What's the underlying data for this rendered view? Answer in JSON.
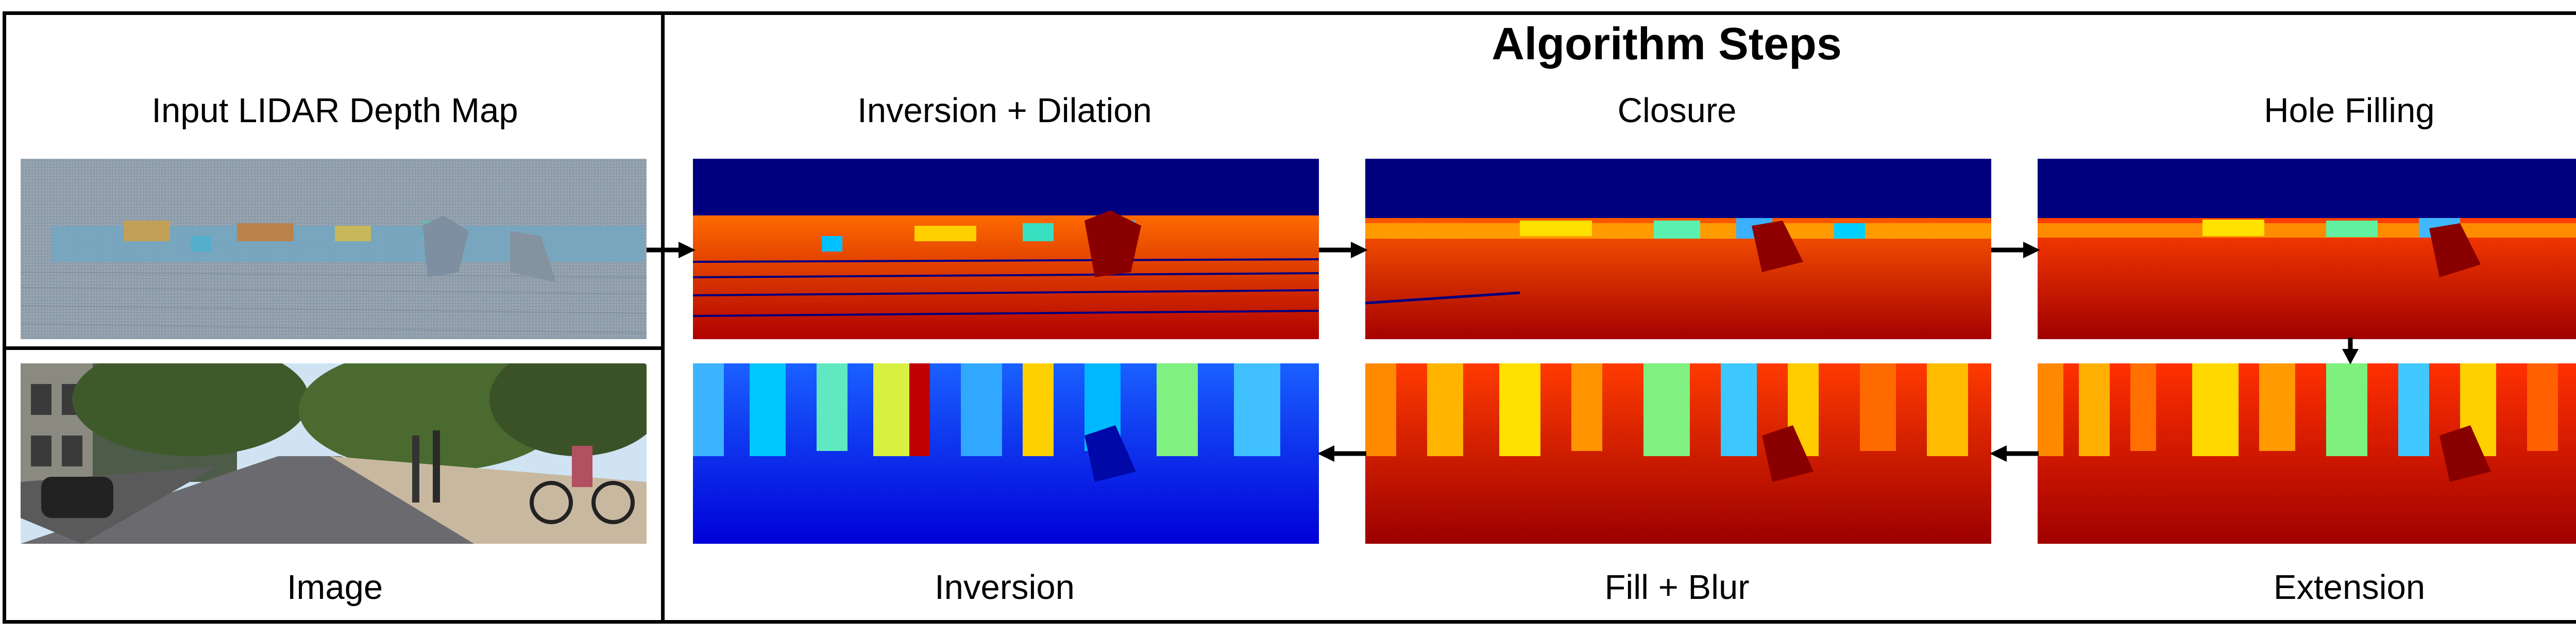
{
  "title": "Algorithm Steps",
  "left_column": {
    "top_label": "Input LIDAR Depth Map",
    "bottom_label": "Image"
  },
  "steps": [
    {
      "label": "Inversion + Dilation",
      "colormap": "jet-inverted"
    },
    {
      "label": "Closure",
      "colormap": "jet-inverted"
    },
    {
      "label": "Hole Filling",
      "colormap": "jet-inverted"
    },
    {
      "label": "Extension",
      "colormap": "jet-inverted"
    },
    {
      "label": "Fill + Blur",
      "colormap": "jet-inverted"
    },
    {
      "label": "Inversion",
      "colormap": "jet"
    }
  ],
  "colors": {
    "jet_dark_blue": "#00007f",
    "jet_red": "#e11a08",
    "jet_dark_red": "#8b0000",
    "lidar_gray": "#8e9caa",
    "sky": "#cfe3f2",
    "border": "#000000"
  }
}
